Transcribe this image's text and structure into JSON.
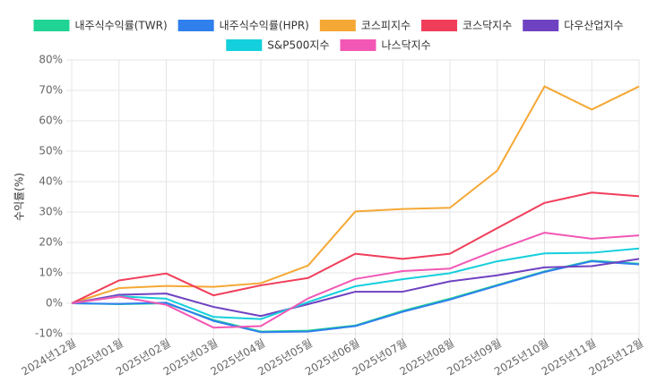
{
  "chart_data": {
    "type": "line",
    "y_label": "수익률(%)",
    "categories": [
      "2024년12월",
      "2025년01월",
      "2025년02월",
      "2025년03월",
      "2025년04월",
      "2025년05월",
      "2025년06월",
      "2025년07월",
      "2025년08월",
      "2025년09월",
      "2025년10월",
      "2025년11월",
      "2025년12월"
    ],
    "series": [
      {
        "name": "내주식수익률(TWR)",
        "color": "#1fd494",
        "values": [
          0,
          -0.3,
          0,
          -5.5,
          -9.3,
          -9,
          -7.3,
          -2.5,
          1.5,
          6,
          10.5,
          14,
          13
        ]
      },
      {
        "name": "내주식수익률(HPR)",
        "color": "#2f7fed",
        "values": [
          0,
          -0.2,
          0.2,
          -5.8,
          -9.5,
          -9.3,
          -7.5,
          -2.8,
          1.2,
          5.8,
          10.3,
          13.8,
          12.8
        ]
      },
      {
        "name": "코스피지수",
        "color": "#f5a835",
        "values": [
          0,
          5,
          5.7,
          5.4,
          6.6,
          12.4,
          30.2,
          31,
          31.4,
          43.6,
          71.3,
          63.7,
          71.3
        ]
      },
      {
        "name": "코스닥지수",
        "color": "#f03e5a",
        "values": [
          0,
          7.5,
          9.8,
          2.6,
          5.9,
          8.3,
          16.3,
          14.6,
          16.3,
          24.7,
          33,
          36.4,
          35.2
        ]
      },
      {
        "name": "다우산업지수",
        "color": "#6f42c1",
        "values": [
          0,
          2.8,
          3.2,
          -1.2,
          -4.2,
          -0.3,
          3.8,
          3.8,
          7.2,
          9.2,
          11.8,
          12.2,
          14.6
        ]
      },
      {
        "name": "S&P500지수",
        "color": "#14cfdc",
        "values": [
          0,
          2.3,
          1.5,
          -4.5,
          -5.2,
          0.4,
          5.6,
          7.9,
          9.9,
          13.8,
          16.4,
          16.6,
          18
        ]
      },
      {
        "name": "나스닥지수",
        "color": "#f257b5",
        "values": [
          0,
          2.2,
          -0.5,
          -8,
          -7.5,
          1.6,
          8,
          10.6,
          11.4,
          17.6,
          23.2,
          21.2,
          22.3
        ]
      }
    ],
    "ylim": [
      -10,
      80
    ],
    "yticks": [
      {
        "value": -10,
        "label": "-10%"
      },
      {
        "value": 0,
        "label": "0%"
      },
      {
        "value": 10,
        "label": "10%"
      },
      {
        "value": 20,
        "label": "20%"
      },
      {
        "value": 30,
        "label": "30%"
      },
      {
        "value": 40,
        "label": "40%"
      },
      {
        "value": 50,
        "label": "50%"
      },
      {
        "value": 60,
        "label": "60%"
      },
      {
        "value": 70,
        "label": "70%"
      },
      {
        "value": 80,
        "label": "80%"
      }
    ],
    "grid": true
  }
}
